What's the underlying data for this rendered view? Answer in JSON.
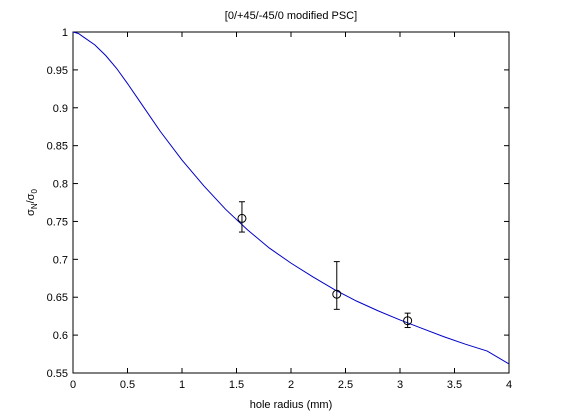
{
  "chart_data": {
    "type": "scatter",
    "title": "[0/+45/-45/0 modified PSC]",
    "xlabel": "hole radius (mm)",
    "ylabel": {
      "base": "σ",
      "num_sub": "N",
      "sep": "/σ",
      "den_sub": "0"
    },
    "xlim": [
      0,
      4
    ],
    "ylim": [
      0.55,
      1
    ],
    "xticks": [
      "0",
      "0.5",
      "1",
      "1.5",
      "2",
      "2.5",
      "3",
      "3.5",
      "4"
    ],
    "yticks": [
      "0.55",
      "0.6",
      "0.65",
      "0.7",
      "0.75",
      "0.8",
      "0.85",
      "0.9",
      "0.95",
      "1"
    ],
    "grid": false,
    "series": [
      {
        "kind": "line",
        "color": "#0000c8",
        "x": [
          0,
          0.05,
          0.1,
          0.2,
          0.3,
          0.4,
          0.5,
          0.6,
          0.8,
          1.0,
          1.2,
          1.4,
          1.6,
          1.8,
          2.0,
          2.2,
          2.4,
          2.6,
          2.8,
          3.0,
          3.2,
          3.4,
          3.6,
          3.8,
          4.0
        ],
        "y": [
          1.0,
          0.998,
          0.993,
          0.983,
          0.969,
          0.952,
          0.932,
          0.911,
          0.869,
          0.831,
          0.797,
          0.766,
          0.739,
          0.715,
          0.695,
          0.677,
          0.66,
          0.645,
          0.632,
          0.62,
          0.609,
          0.598,
          0.588,
          0.579,
          0.562
        ]
      },
      {
        "kind": "points",
        "marker": "circle",
        "color": "#000000",
        "x": [
          1.55,
          2.42,
          3.07
        ],
        "y": [
          0.754,
          0.654,
          0.619
        ],
        "err_low": [
          0.736,
          0.634,
          0.61
        ],
        "err_high": [
          0.776,
          0.697,
          0.629
        ]
      }
    ]
  }
}
